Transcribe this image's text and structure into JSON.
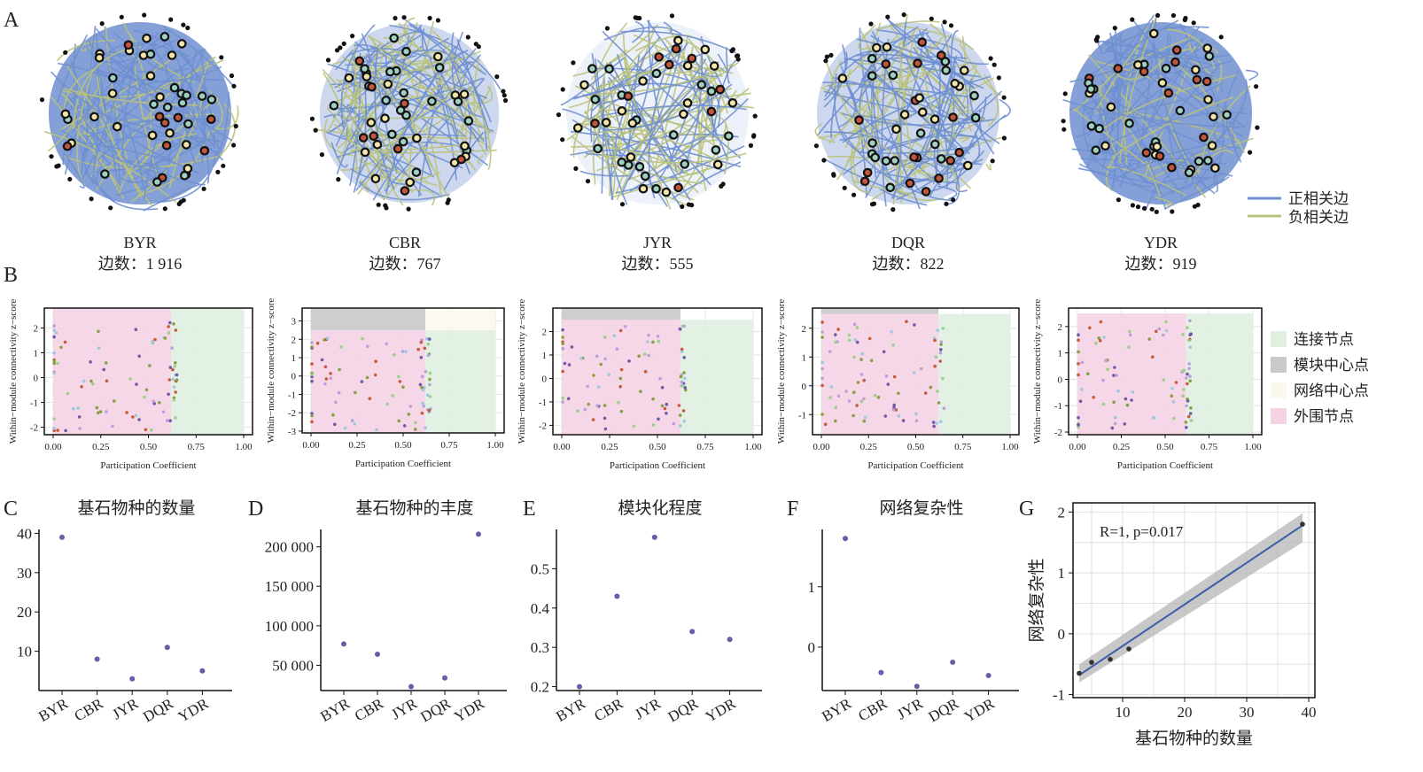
{
  "panel_letters": {
    "A": "A",
    "B": "B",
    "C": "C",
    "D": "D",
    "E": "E",
    "F": "F",
    "G": "G"
  },
  "networks": [
    {
      "name": "BYR",
      "edges": "边数：1 916",
      "style": "dense"
    },
    {
      "name": "CBR",
      "edges": "边数：767",
      "style": "mixed"
    },
    {
      "name": "JYR",
      "edges": "边数：555",
      "style": "sparse"
    },
    {
      "name": "DQR",
      "edges": "边数：822",
      "style": "mixed"
    },
    {
      "name": "YDR",
      "edges": "边数：919",
      "style": "dense"
    }
  ],
  "edge_legend": [
    {
      "label": "正相关边",
      "color": "#6f8fd0"
    },
    {
      "label": "负相关边",
      "color": "#b9c27a"
    }
  ],
  "role_legend": [
    {
      "label": "连接节点",
      "color": "#dff0e1"
    },
    {
      "label": "模块中心点",
      "color": "#c9c9c9"
    },
    {
      "label": "网络中心点",
      "color": "#fbf8ee"
    },
    {
      "label": "外围节点",
      "color": "#f4d3e4"
    }
  ],
  "colors": {
    "positive_edge": "#6f8fd0",
    "negative_edge": "#b9c27a",
    "point": "#6a5aa8",
    "regression_line": "#3a5fa8",
    "ci_band": "#b5b5b5"
  },
  "zp_axes": {
    "ylabel": "Within−module connectivity z−score",
    "xlabel": "Participation Coefficient",
    "xticks": [
      "0.00",
      "0.25",
      "0.50",
      "0.75",
      "1.00"
    ]
  },
  "chart_data": [
    {
      "panel": "B1",
      "type": "scatter",
      "xlabel": "Participation Coefficient",
      "ylabel": "Within−module connectivity z−score",
      "xlim": [
        0,
        1
      ],
      "ylim": [
        -2.3,
        2.8
      ],
      "yticks": [
        2,
        1,
        0,
        -1,
        -2
      ],
      "xticks": [
        0,
        0.25,
        0.5,
        0.75,
        1
      ],
      "regions": [
        {
          "role": "peripheral",
          "x": [
            0,
            0.62
          ],
          "y": [
            -2.3,
            2.8
          ]
        },
        {
          "role": "connector",
          "x": [
            0.62,
            1
          ],
          "y": [
            -2.3,
            2.8
          ]
        }
      ]
    },
    {
      "panel": "B2",
      "type": "scatter",
      "xlabel": "Participation Coefficient",
      "ylabel": "Within−module connectivity z−score",
      "xlim": [
        0,
        1
      ],
      "ylim": [
        -3.1,
        3.7
      ],
      "yticks": [
        3,
        2,
        1,
        0,
        -1,
        -2,
        -3
      ],
      "xticks": [
        0,
        0.25,
        0.5,
        0.75,
        1
      ],
      "regions": [
        {
          "role": "peripheral",
          "x": [
            0,
            0.62
          ],
          "y": [
            -3.1,
            2.5
          ]
        },
        {
          "role": "connector",
          "x": [
            0.62,
            1
          ],
          "y": [
            -3.1,
            2.5
          ]
        },
        {
          "role": "module hub",
          "x": [
            0,
            0.62
          ],
          "y": [
            2.5,
            3.7
          ]
        },
        {
          "role": "network hub",
          "x": [
            0.62,
            1
          ],
          "y": [
            2.5,
            3.7
          ]
        }
      ]
    },
    {
      "panel": "B3",
      "type": "scatter",
      "xlabel": "Participation Coefficient",
      "ylabel": "Within−module connectivity z−score",
      "xlim": [
        0,
        1
      ],
      "ylim": [
        -2.4,
        3.0
      ],
      "yticks": [
        2,
        1,
        0,
        -1,
        -2
      ],
      "xticks": [
        0,
        0.25,
        0.5,
        0.75,
        1
      ],
      "regions": [
        {
          "role": "peripheral",
          "x": [
            0,
            0.62
          ],
          "y": [
            -2.4,
            2.5
          ]
        },
        {
          "role": "connector",
          "x": [
            0.62,
            1
          ],
          "y": [
            -2.4,
            2.5
          ]
        },
        {
          "role": "module hub",
          "x": [
            0,
            0.62
          ],
          "y": [
            2.5,
            3.0
          ]
        }
      ]
    },
    {
      "panel": "B4",
      "type": "scatter",
      "xlabel": "Participation Coefficient",
      "ylabel": "Within−module connectivity z−score",
      "xlim": [
        0,
        1
      ],
      "ylim": [
        -1.7,
        2.7
      ],
      "yticks": [
        2,
        1,
        0,
        -1
      ],
      "xticks": [
        0,
        0.25,
        0.5,
        0.75,
        1
      ],
      "regions": [
        {
          "role": "peripheral",
          "x": [
            0,
            0.62
          ],
          "y": [
            -1.7,
            2.5
          ]
        },
        {
          "role": "connector",
          "x": [
            0.62,
            1
          ],
          "y": [
            -1.7,
            2.5
          ]
        },
        {
          "role": "module hub",
          "x": [
            0,
            0.62
          ],
          "y": [
            2.5,
            2.7
          ]
        }
      ]
    },
    {
      "panel": "B5",
      "type": "scatter",
      "xlabel": "Participation Coefficient",
      "ylabel": "Within−module connectivity z−score",
      "xlim": [
        0,
        1
      ],
      "ylim": [
        -2.1,
        2.7
      ],
      "yticks": [
        2,
        1,
        0,
        -1,
        -2
      ],
      "xticks": [
        0,
        0.25,
        0.5,
        0.75,
        1
      ],
      "regions": [
        {
          "role": "peripheral",
          "x": [
            0,
            0.62
          ],
          "y": [
            -2.1,
            2.5
          ]
        },
        {
          "role": "connector",
          "x": [
            0.62,
            1
          ],
          "y": [
            -2.1,
            2.5
          ]
        }
      ]
    },
    {
      "panel": "C",
      "type": "scatter",
      "title": "基石物种的数量",
      "categories": [
        "BYR",
        "CBR",
        "JYR",
        "DQR",
        "YDR"
      ],
      "values": [
        39,
        8,
        3,
        11,
        5
      ],
      "ylim": [
        0,
        41
      ],
      "yticks": [
        10,
        20,
        30,
        40
      ],
      "ytick_labels": [
        "10",
        "20",
        "30",
        "40"
      ]
    },
    {
      "panel": "D",
      "type": "scatter",
      "title": "基石物种的丰度",
      "categories": [
        "BYR",
        "CBR",
        "JYR",
        "DQR",
        "YDR"
      ],
      "values": [
        77000,
        64000,
        23000,
        34000,
        216000
      ],
      "ylim": [
        18000,
        222000
      ],
      "yticks": [
        50000,
        100000,
        150000,
        200000
      ],
      "ytick_labels": [
        "50 000",
        "100 000",
        "150 000",
        "200 000"
      ]
    },
    {
      "panel": "E",
      "type": "scatter",
      "title": "模块化程度",
      "categories": [
        "BYR",
        "CBR",
        "JYR",
        "DQR",
        "YDR"
      ],
      "values": [
        0.2,
        0.43,
        0.58,
        0.34,
        0.32
      ],
      "ylim": [
        0.19,
        0.6
      ],
      "yticks": [
        0.2,
        0.3,
        0.4,
        0.5
      ],
      "ytick_labels": [
        "0.2",
        "0.3",
        "0.4",
        "0.5"
      ]
    },
    {
      "panel": "F",
      "type": "scatter",
      "title": "网络复杂性",
      "categories": [
        "BYR",
        "CBR",
        "JYR",
        "DQR",
        "YDR"
      ],
      "values": [
        1.8,
        -0.42,
        -0.65,
        -0.25,
        -0.47
      ],
      "ylim": [
        -0.72,
        1.95
      ],
      "yticks": [
        0,
        1
      ],
      "ytick_labels": [
        "0",
        "1"
      ]
    },
    {
      "panel": "G",
      "type": "scatter",
      "xlabel": "基石物种的数量",
      "ylabel": "网络复杂性",
      "annotation": "R=1, p=0.017",
      "x": [
        3,
        5,
        8,
        11,
        39
      ],
      "y": [
        -0.65,
        -0.47,
        -0.42,
        -0.25,
        1.8
      ],
      "fit": {
        "x": [
          3,
          39
        ],
        "y": [
          -0.68,
          1.78
        ]
      },
      "xlim": [
        2,
        41
      ],
      "ylim": [
        -1.05,
        2.15
      ],
      "xticks": [
        10,
        20,
        30,
        40
      ],
      "yticks": [
        -1,
        0,
        1,
        2
      ]
    }
  ]
}
